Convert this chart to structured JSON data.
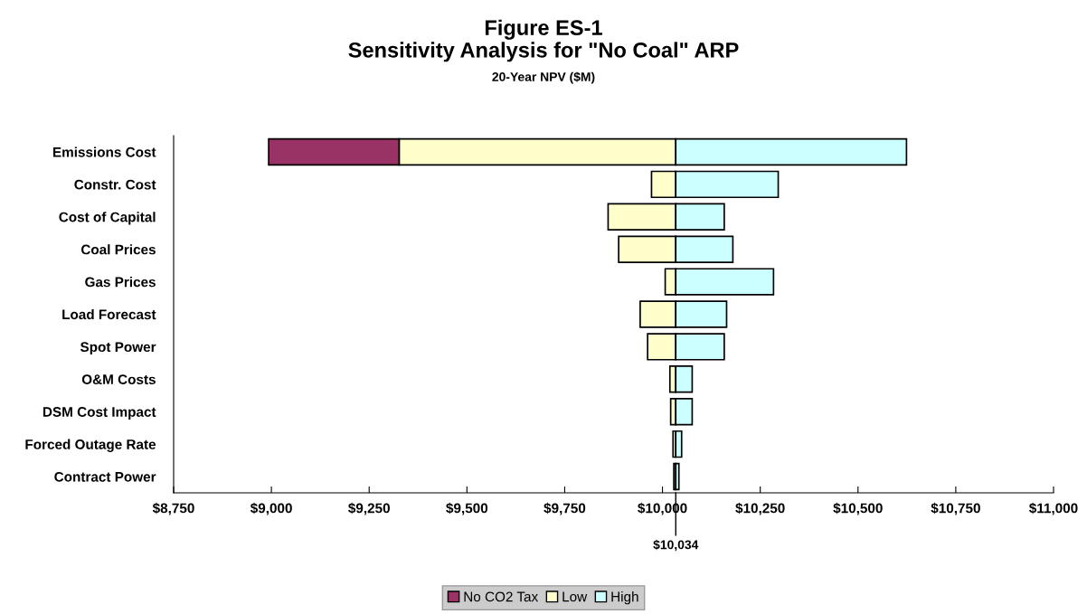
{
  "chart_data": {
    "type": "bar",
    "orientation": "horizontal",
    "title": "Figure ES-1\nSensitivity Analysis for \"No Coal\" ARP",
    "subtitle": "20-Year NPV ($M)",
    "categories": [
      "Emissions Cost",
      "Constr. Cost",
      "Cost of Capital",
      "Coal Prices",
      "Gas Prices",
      "Load Forecast",
      "Spot Power",
      "O&M Costs",
      "DSM Cost Impact",
      "Forced Outage Rate",
      "Contract Power"
    ],
    "series": [
      {
        "name": "No CO2 Tax",
        "color": "#993366",
        "base": [
          8993,
          null,
          null,
          null,
          null,
          null,
          null,
          null,
          null,
          null,
          null
        ],
        "values": [
          334,
          null,
          null,
          null,
          null,
          null,
          null,
          null,
          null,
          null,
          null
        ]
      },
      {
        "name": "Low",
        "color": "#ffffcc",
        "base": [
          9327,
          9972,
          9861,
          9888,
          10007,
          9943,
          9962,
          10019,
          10021,
          10027,
          10029
        ],
        "values": [
          707,
          62,
          173,
          146,
          27,
          91,
          72,
          15,
          13,
          7,
          5
        ]
      },
      {
        "name": "High",
        "color": "#ccffff",
        "base": [
          10034,
          10034,
          10034,
          10034,
          10034,
          10034,
          10034,
          10034,
          10034,
          10034,
          10034
        ],
        "values": [
          590,
          262,
          124,
          146,
          250,
          130,
          124,
          42,
          42,
          15,
          8
        ]
      }
    ],
    "xlim": [
      8750,
      11000
    ],
    "xticks": [
      {
        "value": 8750,
        "label": "$8,750"
      },
      {
        "value": 9000,
        "label": "$9,000"
      },
      {
        "value": 9250,
        "label": "$9,250"
      },
      {
        "value": 9500,
        "label": "$9,500"
      },
      {
        "value": 9750,
        "label": "$9,750"
      },
      {
        "value": 10000,
        "label": "$10,000"
      },
      {
        "value": 10250,
        "label": "$10,250"
      },
      {
        "value": 10500,
        "label": "$10,500"
      },
      {
        "value": 10750,
        "label": "$10,750"
      },
      {
        "value": 11000,
        "label": "$11,000"
      }
    ],
    "ref_lines": [
      {
        "axis": "x",
        "value": 10034,
        "label": "$10,034",
        "color": "#000000"
      }
    ],
    "grid": false,
    "legend": "bottom"
  }
}
